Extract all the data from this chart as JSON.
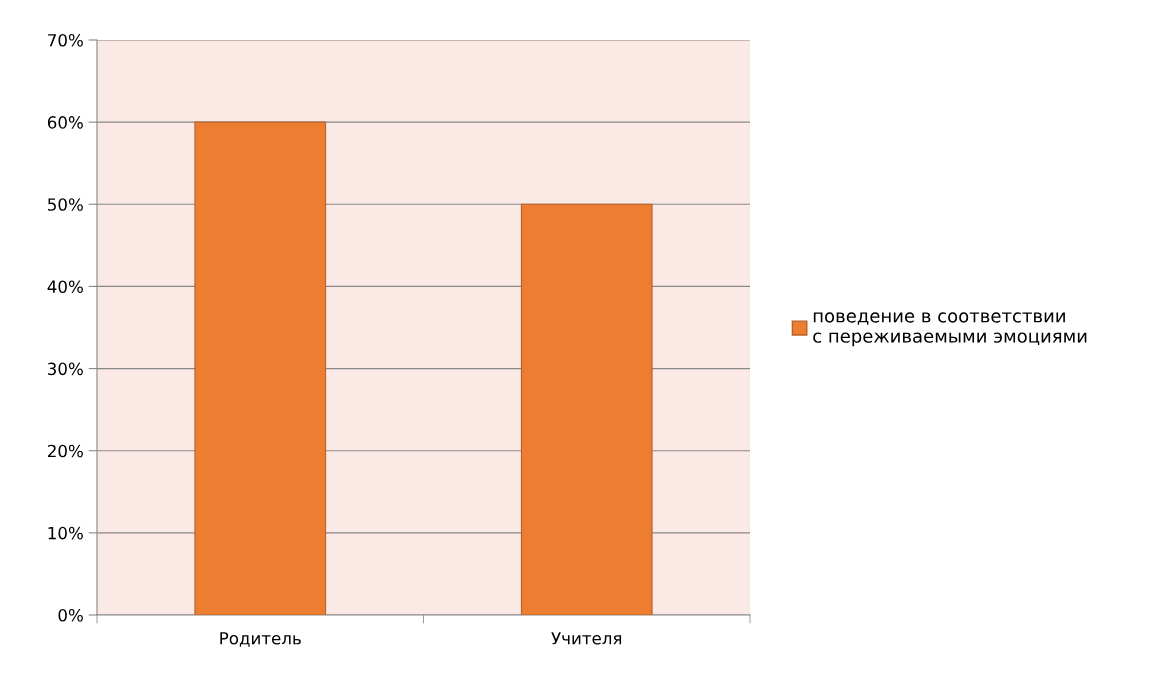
{
  "chart_data": {
    "type": "bar",
    "categories": [
      "Родитель",
      "Учителя"
    ],
    "series": [
      {
        "name": "поведение в соответствии с переживаемыми эмоциями",
        "color": "#ed7d31",
        "values": [
          60,
          50
        ]
      }
    ],
    "ylim": [
      0,
      70
    ],
    "yticks": [
      {
        "value": 0,
        "label": "0%"
      },
      {
        "value": 10,
        "label": "10%"
      },
      {
        "value": 20,
        "label": "20%"
      },
      {
        "value": 30,
        "label": "30%"
      },
      {
        "value": 40,
        "label": "40%"
      },
      {
        "value": 50,
        "label": "50%"
      },
      {
        "value": 60,
        "label": "60%"
      },
      {
        "value": 70,
        "label": "70%"
      }
    ],
    "grid": "y",
    "legend": "right"
  }
}
